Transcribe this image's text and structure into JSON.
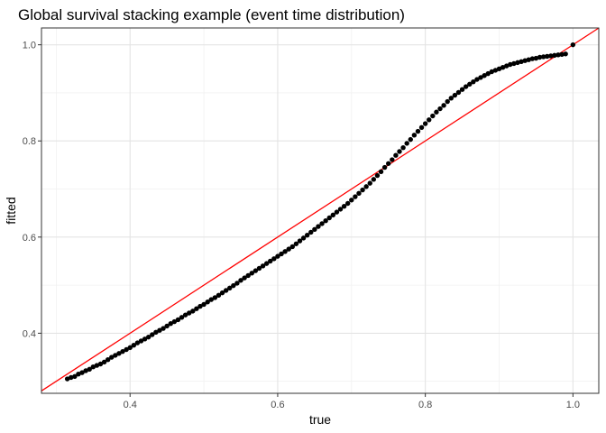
{
  "chart_data": {
    "type": "scatter",
    "title": "Global survival stacking example (event time distribution)",
    "xlabel": "true",
    "ylabel": "fitted",
    "xlim": [
      0.28,
      1.035
    ],
    "ylim": [
      0.275,
      1.035
    ],
    "x_ticks": [
      0.4,
      0.6,
      0.8,
      1.0
    ],
    "x_tick_labels": [
      "0.4",
      "0.6",
      "0.8",
      "1.0"
    ],
    "y_ticks": [
      0.4,
      0.6,
      0.8,
      1.0
    ],
    "y_tick_labels": [
      "0.4",
      "0.6",
      "0.8",
      "1.0"
    ],
    "grid": true,
    "legend": "none",
    "reference_line": {
      "intercept": 0,
      "slope": 1,
      "color": "#ff0000"
    },
    "point_color": "#000000",
    "points": [
      [
        0.315,
        0.305
      ],
      [
        0.32,
        0.308
      ],
      [
        0.325,
        0.31
      ],
      [
        0.33,
        0.315
      ],
      [
        0.335,
        0.318
      ],
      [
        0.34,
        0.322
      ],
      [
        0.345,
        0.325
      ],
      [
        0.35,
        0.33
      ],
      [
        0.355,
        0.333
      ],
      [
        0.36,
        0.336
      ],
      [
        0.365,
        0.34
      ],
      [
        0.37,
        0.345
      ],
      [
        0.375,
        0.35
      ],
      [
        0.38,
        0.354
      ],
      [
        0.385,
        0.358
      ],
      [
        0.39,
        0.362
      ],
      [
        0.395,
        0.366
      ],
      [
        0.4,
        0.37
      ],
      [
        0.405,
        0.375
      ],
      [
        0.41,
        0.38
      ],
      [
        0.415,
        0.384
      ],
      [
        0.42,
        0.388
      ],
      [
        0.425,
        0.392
      ],
      [
        0.43,
        0.397
      ],
      [
        0.435,
        0.402
      ],
      [
        0.44,
        0.406
      ],
      [
        0.445,
        0.41
      ],
      [
        0.45,
        0.415
      ],
      [
        0.455,
        0.42
      ],
      [
        0.46,
        0.424
      ],
      [
        0.465,
        0.428
      ],
      [
        0.47,
        0.433
      ],
      [
        0.475,
        0.438
      ],
      [
        0.48,
        0.442
      ],
      [
        0.485,
        0.446
      ],
      [
        0.49,
        0.451
      ],
      [
        0.495,
        0.456
      ],
      [
        0.5,
        0.46
      ],
      [
        0.505,
        0.465
      ],
      [
        0.51,
        0.47
      ],
      [
        0.515,
        0.474
      ],
      [
        0.52,
        0.479
      ],
      [
        0.525,
        0.484
      ],
      [
        0.53,
        0.489
      ],
      [
        0.535,
        0.494
      ],
      [
        0.54,
        0.499
      ],
      [
        0.545,
        0.504
      ],
      [
        0.55,
        0.51
      ],
      [
        0.555,
        0.515
      ],
      [
        0.56,
        0.52
      ],
      [
        0.565,
        0.525
      ],
      [
        0.57,
        0.53
      ],
      [
        0.575,
        0.535
      ],
      [
        0.58,
        0.54
      ],
      [
        0.585,
        0.545
      ],
      [
        0.59,
        0.55
      ],
      [
        0.595,
        0.555
      ],
      [
        0.6,
        0.56
      ],
      [
        0.605,
        0.565
      ],
      [
        0.61,
        0.57
      ],
      [
        0.615,
        0.575
      ],
      [
        0.62,
        0.58
      ],
      [
        0.625,
        0.586
      ],
      [
        0.63,
        0.592
      ],
      [
        0.635,
        0.598
      ],
      [
        0.64,
        0.604
      ],
      [
        0.645,
        0.61
      ],
      [
        0.65,
        0.616
      ],
      [
        0.655,
        0.622
      ],
      [
        0.66,
        0.628
      ],
      [
        0.665,
        0.634
      ],
      [
        0.67,
        0.64
      ],
      [
        0.675,
        0.646
      ],
      [
        0.68,
        0.652
      ],
      [
        0.685,
        0.658
      ],
      [
        0.69,
        0.664
      ],
      [
        0.695,
        0.67
      ],
      [
        0.7,
        0.677
      ],
      [
        0.705,
        0.684
      ],
      [
        0.71,
        0.691
      ],
      [
        0.715,
        0.698
      ],
      [
        0.72,
        0.705
      ],
      [
        0.725,
        0.712
      ],
      [
        0.73,
        0.72
      ],
      [
        0.735,
        0.728
      ],
      [
        0.74,
        0.736
      ],
      [
        0.745,
        0.745
      ],
      [
        0.75,
        0.753
      ],
      [
        0.755,
        0.761
      ],
      [
        0.76,
        0.77
      ],
      [
        0.765,
        0.778
      ],
      [
        0.77,
        0.786
      ],
      [
        0.775,
        0.795
      ],
      [
        0.78,
        0.803
      ],
      [
        0.785,
        0.812
      ],
      [
        0.79,
        0.82
      ],
      [
        0.795,
        0.828
      ],
      [
        0.8,
        0.836
      ],
      [
        0.805,
        0.844
      ],
      [
        0.81,
        0.852
      ],
      [
        0.815,
        0.86
      ],
      [
        0.82,
        0.867
      ],
      [
        0.825,
        0.874
      ],
      [
        0.83,
        0.882
      ],
      [
        0.835,
        0.889
      ],
      [
        0.84,
        0.895
      ],
      [
        0.845,
        0.901
      ],
      [
        0.85,
        0.907
      ],
      [
        0.855,
        0.913
      ],
      [
        0.86,
        0.918
      ],
      [
        0.865,
        0.923
      ],
      [
        0.87,
        0.928
      ],
      [
        0.875,
        0.932
      ],
      [
        0.88,
        0.936
      ],
      [
        0.885,
        0.94
      ],
      [
        0.89,
        0.944
      ],
      [
        0.895,
        0.947
      ],
      [
        0.9,
        0.95
      ],
      [
        0.905,
        0.953
      ],
      [
        0.91,
        0.956
      ],
      [
        0.915,
        0.959
      ],
      [
        0.92,
        0.961
      ],
      [
        0.925,
        0.963
      ],
      [
        0.93,
        0.965
      ],
      [
        0.935,
        0.967
      ],
      [
        0.94,
        0.969
      ],
      [
        0.945,
        0.971
      ],
      [
        0.95,
        0.972
      ],
      [
        0.955,
        0.974
      ],
      [
        0.96,
        0.975
      ],
      [
        0.965,
        0.976
      ],
      [
        0.97,
        0.977
      ],
      [
        0.975,
        0.978
      ],
      [
        0.98,
        0.979
      ],
      [
        0.985,
        0.98
      ],
      [
        0.99,
        0.981
      ],
      [
        1.0,
        1.0
      ]
    ]
  }
}
